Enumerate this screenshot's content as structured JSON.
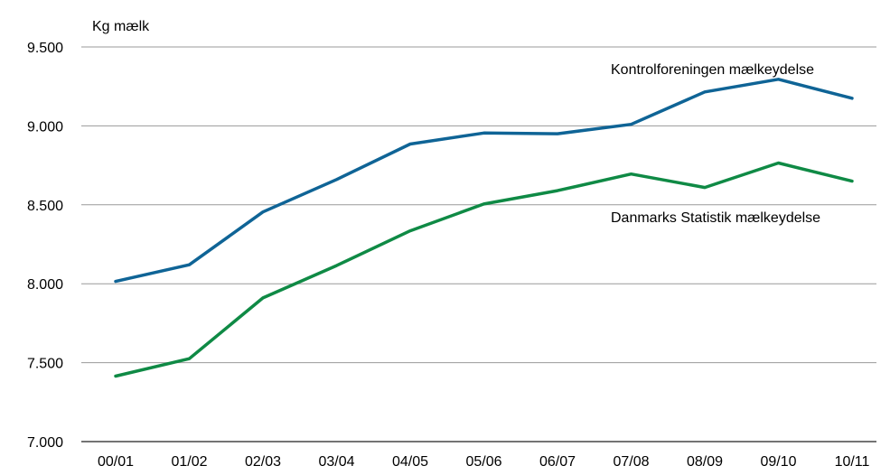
{
  "chart_data": {
    "type": "line",
    "ylabel": "Kg mælk",
    "ylim": [
      7000,
      9500
    ],
    "yticks": [
      7000,
      7500,
      8000,
      8500,
      9000,
      9500
    ],
    "ytick_labels": [
      "7.000",
      "7.500",
      "8.000",
      "8.500",
      "9.000",
      "9.500"
    ],
    "categories": [
      "00/01",
      "01/02",
      "02/03",
      "03/04",
      "04/05",
      "05/06",
      "06/07",
      "07/08",
      "08/09",
      "09/10",
      "10/11"
    ],
    "grid": true,
    "series": [
      {
        "name": "Kontrolforeningen mælkeydelse",
        "color": "#0f6496",
        "values": [
          8015,
          8120,
          8455,
          8660,
          8885,
          8955,
          8950,
          9010,
          9215,
          9295,
          9175
        ]
      },
      {
        "name": "Danmarks Statistik mælkeydelse",
        "color": "#0f8a45",
        "values": [
          7415,
          7525,
          7910,
          8115,
          8335,
          8505,
          8590,
          8695,
          8610,
          8765,
          8650
        ]
      }
    ]
  }
}
